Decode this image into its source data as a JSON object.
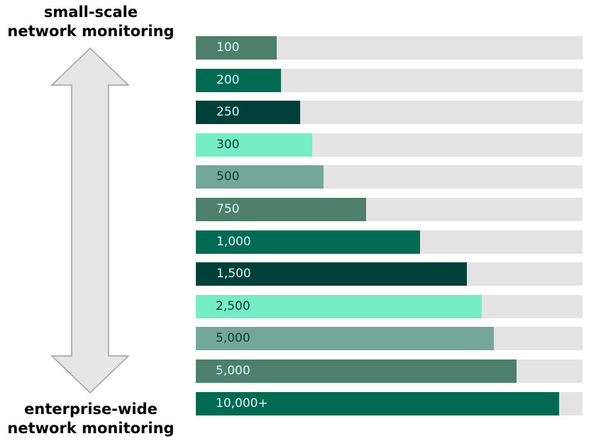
{
  "top_label": {
    "line1": "small-scale",
    "line2": "network monitoring"
  },
  "bottom_label": {
    "line1": "enterprise-wide",
    "line2": "network monitoring"
  },
  "chart_data": {
    "type": "bar",
    "orientation": "horizontal",
    "categories": [
      "100",
      "200",
      "250",
      "300",
      "500",
      "750",
      "1,000",
      "1,500",
      "2,500",
      "5,000",
      "5,000",
      "10,000+"
    ],
    "values": [
      0.21,
      0.22,
      0.27,
      0.3,
      0.33,
      0.44,
      0.58,
      0.7,
      0.74,
      0.77,
      0.83,
      0.94
    ],
    "value_unit": "fraction of full track",
    "bar_colors": [
      "#4e7f6c",
      "#006a52",
      "#00403a",
      "#76edc4",
      "#73a898",
      "#4e7f6c",
      "#006a52",
      "#00403a",
      "#76edc4",
      "#73a898",
      "#4e7f6c",
      "#006a52"
    ],
    "label_colors": [
      "#d8f7ff",
      "#d8f7ff",
      "#d8f7ff",
      "#0c3a33",
      "#0c3a33",
      "#d8f7ff",
      "#d8f7ff",
      "#d8f7ff",
      "#0c3a33",
      "#0c3a33",
      "#d8f7ff",
      "#d8f7ff"
    ],
    "track_color": "#e3e3e3",
    "title": "",
    "xlabel": "",
    "ylabel": "",
    "grid": false
  }
}
